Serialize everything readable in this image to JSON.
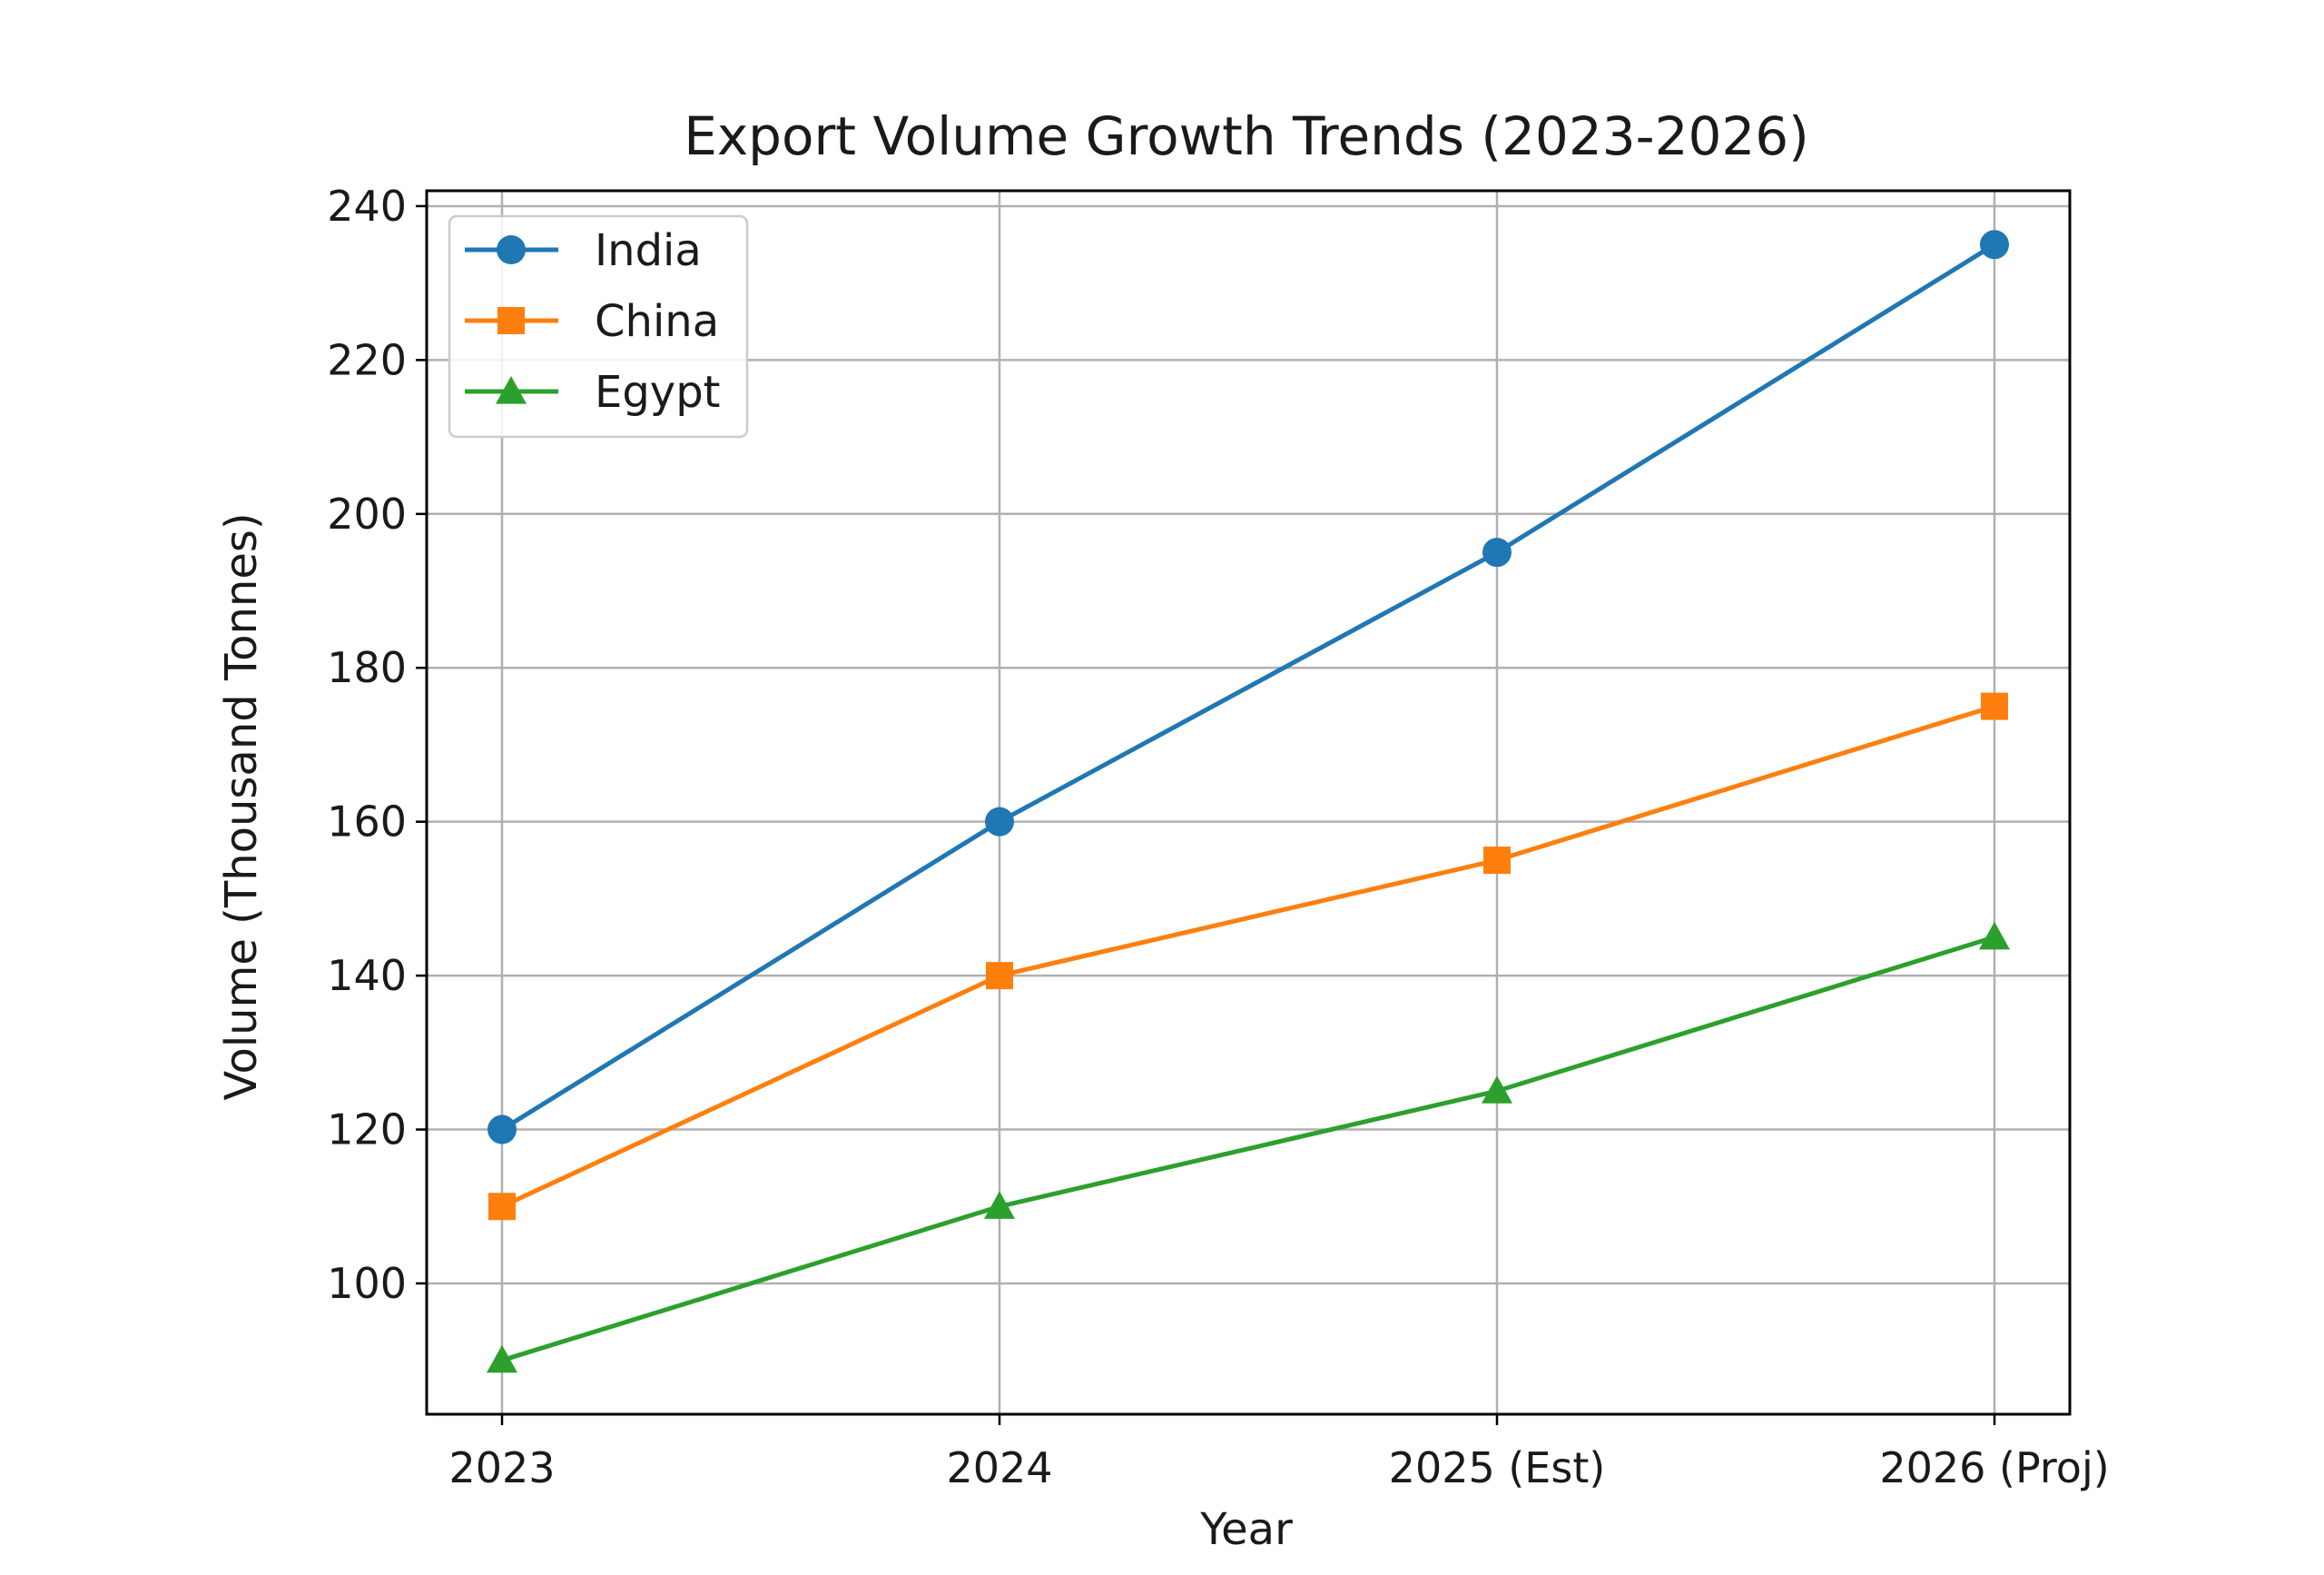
{
  "chart_data": {
    "type": "line",
    "title": "Export Volume Growth Trends (2023-2026)",
    "xlabel": "Year",
    "ylabel": "Volume (Thousand Tonnes)",
    "categories": [
      "2023",
      "2024",
      "2025 (Est)",
      "2026 (Proj)"
    ],
    "series": [
      {
        "name": "India",
        "values": [
          120,
          160,
          195,
          235
        ],
        "color": "#1f77b4",
        "marker": "circle"
      },
      {
        "name": "China",
        "values": [
          110,
          140,
          155,
          175
        ],
        "color": "#ff7f0e",
        "marker": "square"
      },
      {
        "name": "Egypt",
        "values": [
          90,
          110,
          125,
          145
        ],
        "color": "#2ca02c",
        "marker": "triangle"
      }
    ],
    "ylim": [
      83,
      242
    ],
    "yticks": [
      100,
      120,
      140,
      160,
      180,
      200,
      220,
      240
    ],
    "grid": true,
    "legend_position": "top-left"
  }
}
